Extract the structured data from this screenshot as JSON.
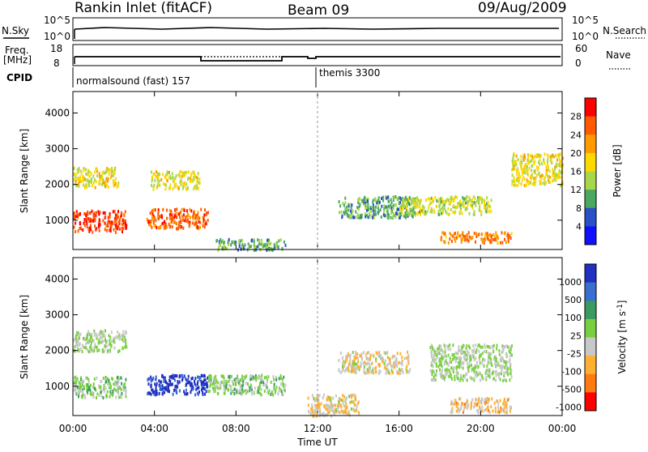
{
  "header": {
    "station": "Rankin Inlet (fitACF)",
    "beam": "Beam 09",
    "date": "09/Aug/2009"
  },
  "sky_panel": {
    "left_label": "N.Sky",
    "right_label": "N.Search",
    "left_ticks": [
      "10^5",
      "10^0"
    ],
    "right_ticks": [
      "10^5",
      "10^0"
    ]
  },
  "freq_panel": {
    "left_label_1": "Freq.",
    "left_label_2": "[MHz]",
    "right_label": "Nave",
    "left_ticks": [
      "18",
      "8"
    ],
    "right_ticks": [
      "60",
      "0"
    ]
  },
  "cpid_panel": {
    "label": "CPID",
    "mode_1": "normalsound (fast) 157",
    "mode_2": "themis 3300"
  },
  "power_panel": {
    "ylabel": "Slant Range [km]",
    "yticks": [
      "4000",
      "3000",
      "2000",
      "1000"
    ],
    "colorbar_label": "Power [dB]",
    "colorbar_ticks": [
      "28",
      "24",
      "20",
      "16",
      "12",
      "8",
      "4"
    ]
  },
  "velocity_panel": {
    "ylabel": "Slant Range [km]",
    "yticks": [
      "4000",
      "3000",
      "2000",
      "1000"
    ],
    "colorbar_label": "Velocity [m s",
    "colorbar_label_sup": "-1",
    "colorbar_label_end": "]",
    "colorbar_ticks": [
      "1000",
      "500",
      "100",
      "25",
      "-25",
      "-100",
      "-500",
      "-1000"
    ]
  },
  "xaxis": {
    "ticks": [
      "00:00",
      "04:00",
      "08:00",
      "12:00",
      "16:00",
      "20:00",
      "00:00"
    ],
    "label": "Time UT"
  },
  "colors": {
    "power_scale": [
      "#ff0000",
      "#ff5a00",
      "#ff9a00",
      "#ffd800",
      "#a8d84a",
      "#4aa860",
      "#2a50c8",
      "#1010ff"
    ],
    "velocity_scale": [
      "#2030c0",
      "#3a6ed0",
      "#3a9a60",
      "#78d040",
      "#c8c8c8",
      "#ffb030",
      "#ff7a10",
      "#ff0000"
    ]
  },
  "chart_data": [
    {
      "type": "heatmap",
      "title": "Power",
      "xlabel": "Time UT",
      "ylabel": "Slant Range [km]",
      "xlim": [
        0,
        24
      ],
      "ylim": [
        180,
        4600
      ],
      "zlim": [
        0,
        30
      ],
      "zlabel": "Power [dB]",
      "regions": [
        {
          "t": [
            0.0,
            2.6
          ],
          "r": [
            700,
            1300
          ],
          "level": 26
        },
        {
          "t": [
            0.0,
            2.2
          ],
          "r": [
            1950,
            2500
          ],
          "level": 16
        },
        {
          "t": [
            3.6,
            6.6
          ],
          "r": [
            800,
            1350
          ],
          "level": 24
        },
        {
          "t": [
            3.8,
            6.2
          ],
          "r": [
            1900,
            2400
          ],
          "level": 16
        },
        {
          "t": [
            7.0,
            10.4
          ],
          "r": [
            200,
            500
          ],
          "level": 10
        },
        {
          "t": [
            13.0,
            16.8
          ],
          "r": [
            1100,
            1700
          ],
          "level": 10
        },
        {
          "t": [
            16.0,
            20.5
          ],
          "r": [
            1200,
            1700
          ],
          "level": 14
        },
        {
          "t": [
            18.0,
            21.5
          ],
          "r": [
            400,
            700
          ],
          "level": 22
        },
        {
          "t": [
            21.5,
            24.0
          ],
          "r": [
            2000,
            2900
          ],
          "level": 16
        }
      ]
    },
    {
      "type": "heatmap",
      "title": "Velocity",
      "xlabel": "Time UT",
      "ylabel": "Slant Range [km]",
      "xlim": [
        0,
        24
      ],
      "ylim": [
        180,
        4600
      ],
      "zlim": [
        -1000,
        1000
      ],
      "zlabel": "Velocity [m s-1]",
      "regions": [
        {
          "t": [
            0.0,
            2.6
          ],
          "r": [
            700,
            1300
          ],
          "level": 80
        },
        {
          "t": [
            0.0,
            2.6
          ],
          "r": [
            2000,
            2600
          ],
          "level": 0
        },
        {
          "t": [
            3.6,
            6.6
          ],
          "r": [
            800,
            1350
          ],
          "level": 900
        },
        {
          "t": [
            6.6,
            10.4
          ],
          "r": [
            800,
            1350
          ],
          "level": 100
        },
        {
          "t": [
            13.0,
            16.5
          ],
          "r": [
            1400,
            2000
          ],
          "level": -200
        },
        {
          "t": [
            17.5,
            21.5
          ],
          "r": [
            1200,
            2200
          ],
          "level": 0
        },
        {
          "t": [
            18.5,
            21.5
          ],
          "r": [
            300,
            700
          ],
          "level": -300
        },
        {
          "t": [
            11.5,
            14.0
          ],
          "r": [
            200,
            800
          ],
          "level": -200
        }
      ]
    }
  ]
}
